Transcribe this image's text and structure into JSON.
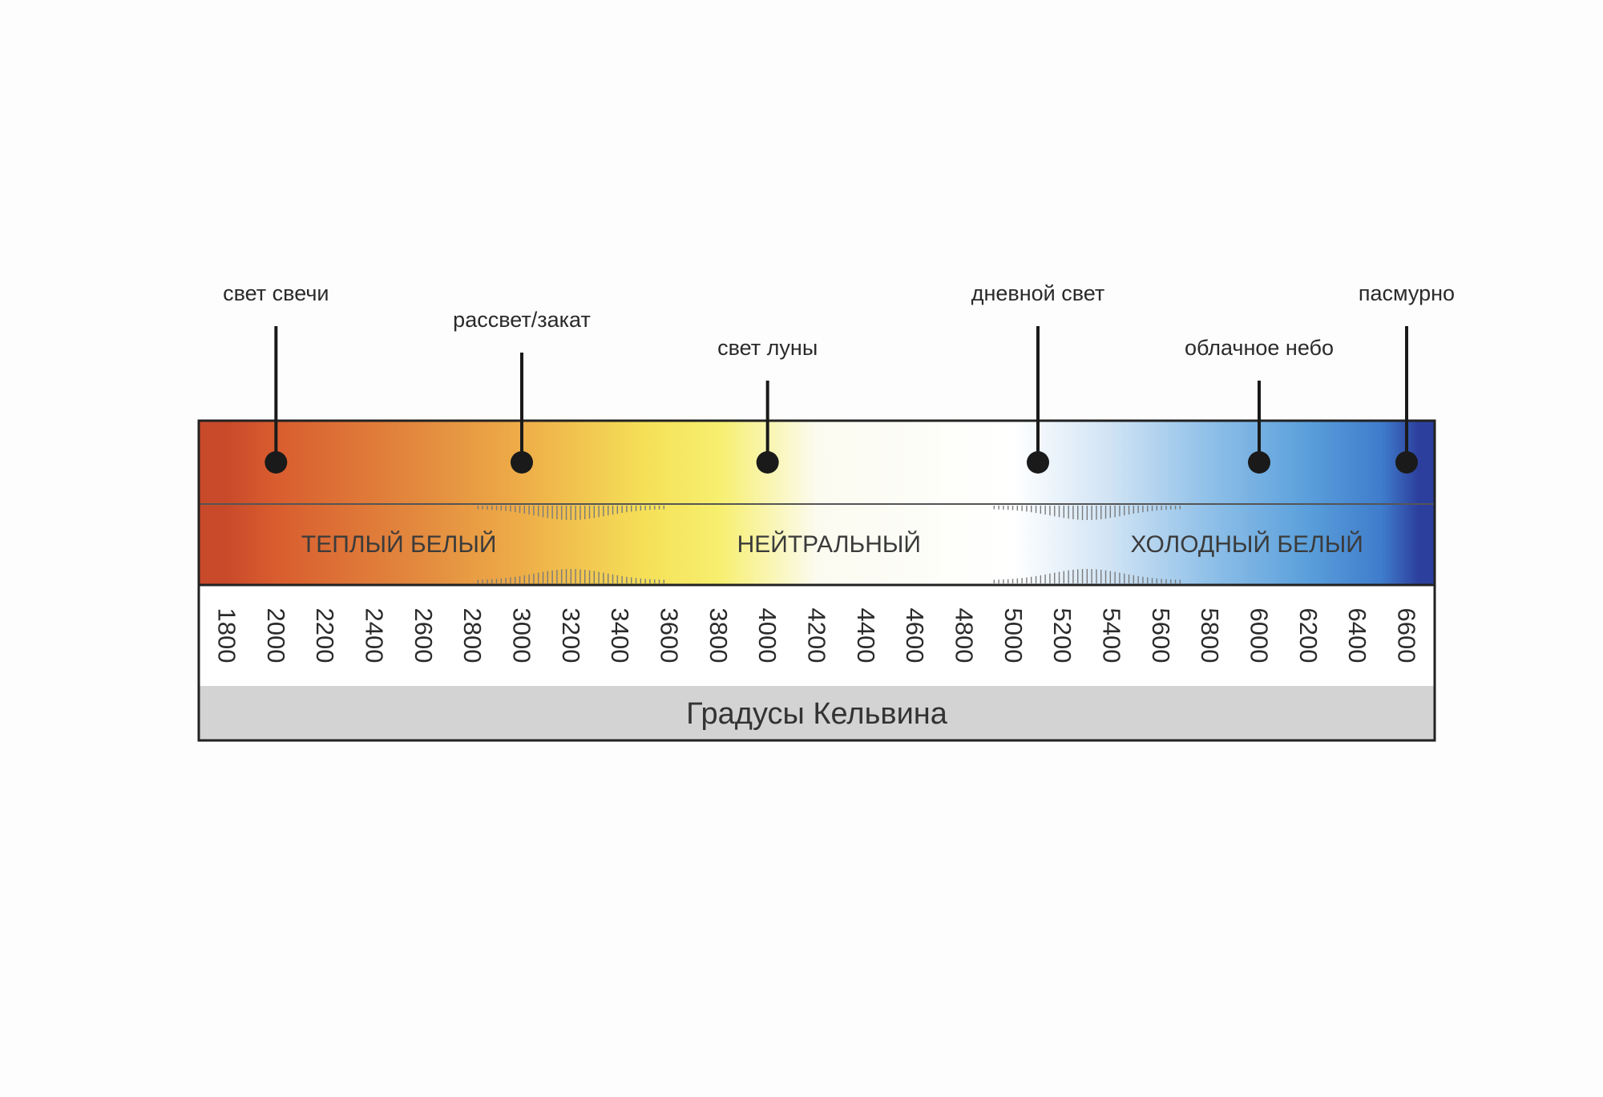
{
  "chart_data": {
    "type": "color-temperature-scale",
    "title": "",
    "xlabel": "Градусы Кельвина",
    "ylabel": "",
    "unit": "K",
    "xlim": [
      1800,
      6600
    ],
    "ticks": [
      1800,
      2000,
      2200,
      2400,
      2600,
      2800,
      3000,
      3200,
      3400,
      3600,
      3800,
      4000,
      4200,
      4400,
      4600,
      4800,
      5000,
      5200,
      5400,
      5600,
      5800,
      6000,
      6200,
      6400,
      6600
    ],
    "markers": [
      {
        "label": "свет свечи",
        "value": 2000
      },
      {
        "label": "рассвет/закат",
        "value": 3000
      },
      {
        "label": "свет луны",
        "value": 4000
      },
      {
        "label": "дневной свет",
        "value": 5100
      },
      {
        "label": "облачное небо",
        "value": 6000
      },
      {
        "label": "пасмурно",
        "value": 6600
      }
    ],
    "zones": [
      {
        "label": "ТЕПЛЫЙ БЕЛЫЙ",
        "from": 1800,
        "to": 3200
      },
      {
        "label": "НЕЙТРАЛЬНЫЙ",
        "from": 3200,
        "to": 5300
      },
      {
        "label": "ХОЛОДНЫЙ БЕЛЫЙ",
        "from": 5300,
        "to": 6600
      }
    ],
    "gradient": [
      {
        "value": 1800,
        "color": "#c94a2a"
      },
      {
        "value": 2000,
        "color": "#d95d2f"
      },
      {
        "value": 2600,
        "color": "#e38b3f"
      },
      {
        "value": 3000,
        "color": "#eead48"
      },
      {
        "value": 3500,
        "color": "#f5e058"
      },
      {
        "value": 3800,
        "color": "#f7ef6e"
      },
      {
        "value": 4200,
        "color": "#fbfbf0"
      },
      {
        "value": 5000,
        "color": "#ffffff"
      },
      {
        "value": 5400,
        "color": "#cfe3f4"
      },
      {
        "value": 5800,
        "color": "#8fc0e8"
      },
      {
        "value": 6200,
        "color": "#5a9fdb"
      },
      {
        "value": 6500,
        "color": "#3f7ccb"
      },
      {
        "value": 6650,
        "color": "#2c3f9c"
      }
    ],
    "axis_band_color": "#d3d3d3",
    "frame_color": "#222222",
    "dot_color": "#1a1a1a"
  }
}
